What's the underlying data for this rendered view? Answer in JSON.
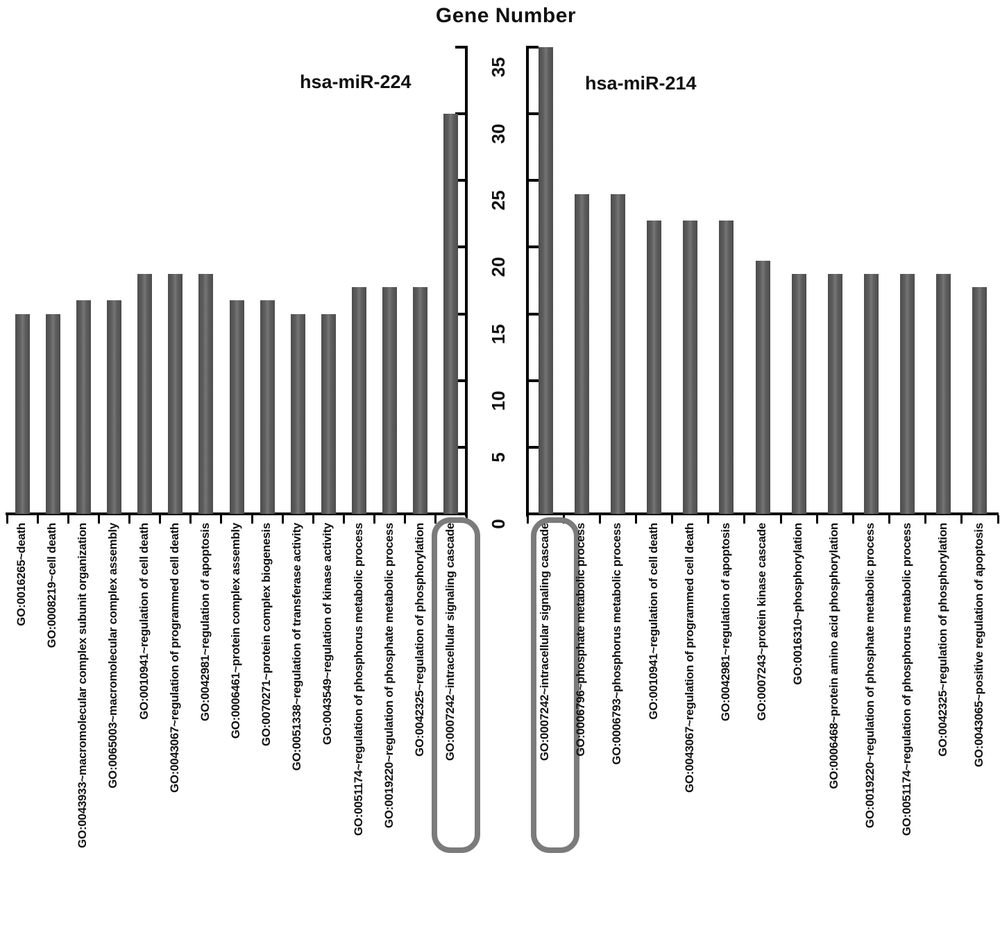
{
  "chart_data": {
    "type": "bar",
    "title": "Gene Number",
    "ylabel": "Gene Number",
    "ylim": [
      0,
      35
    ],
    "yticks": [
      0,
      5,
      10,
      15,
      20,
      25,
      30,
      35
    ],
    "grid": false,
    "legend": "none",
    "panels": [
      {
        "name": "hsa-miR-224",
        "categories": [
          "GO:0016265~death",
          "GO:0008219~cell death",
          "GO:0043933~macromolecular complex subunit organization",
          "GO:0065003~macromolecular complex assembly",
          "GO:0010941~regulation of cell death",
          "GO:0043067~regulation of programmed cell death",
          "GO:0042981~regulation of apoptosis",
          "GO:0006461~protein complex assembly",
          "GO:0070271~protein complex biogenesis",
          "GO:0051338~regulation of transferase activity",
          "GO:0043549~regulation of kinase activity",
          "GO:0051174~regulation of phosphorus metabolic process",
          "GO:0019220~regulation of phosphate metabolic process",
          "GO:0042325~regulation of phosphorylation",
          "GO:0007242~intracellular signaling cascade"
        ],
        "values": [
          15,
          15,
          16,
          16,
          18,
          18,
          18,
          16,
          16,
          15,
          15,
          17,
          17,
          17,
          30
        ],
        "circled_category": "GO:0007242~intracellular signaling cascade"
      },
      {
        "name": "hsa-miR-214",
        "categories": [
          "GO:0007242~intracellular signaling cascade",
          "GO:0006796~phosphate metabolic process",
          "GO:0006793~phosphorus metabolic process",
          "GO:0010941~regulation of cell death",
          "GO:0043067~regulation of programmed cell death",
          "GO:0042981~regulation of apoptosis",
          "GO:0007243~protein kinase cascade",
          "GO:0016310~phosphorylation",
          "GO:0006468~protein amino acid phosphorylation",
          "GO:0019220~regulation of phosphate metabolic process",
          "GO:0051174~regulation of phosphorus metabolic process",
          "GO:0042325~regulation of phosphorylation",
          "GO:0043065~positive regulation of apoptosis"
        ],
        "values": [
          35,
          24,
          24,
          22,
          22,
          22,
          19,
          18,
          18,
          18,
          18,
          18,
          17
        ],
        "circled_category": "GO:0007242~intracellular signaling cascade"
      }
    ]
  },
  "colors": {
    "bar_edge": "#4c4c4c",
    "bar_center": "#757575",
    "axis": "#000000",
    "text": "#111111",
    "circle_outline": "#7b7b7b",
    "background": "#ffffff"
  }
}
